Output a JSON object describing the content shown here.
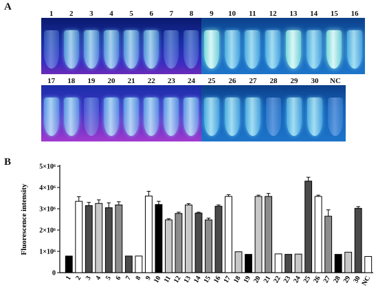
{
  "panel_labels": {
    "a": "A",
    "b": "B"
  },
  "photo_rows": [
    {
      "left_labels": [
        "1",
        "2",
        "3",
        "4",
        "5",
        "6",
        "7",
        "8"
      ],
      "right_labels": [
        "9",
        "10",
        "11",
        "12",
        "13",
        "14",
        "15",
        "16"
      ]
    },
    {
      "left_labels": [
        "17",
        "18",
        "19",
        "20",
        "21",
        "22",
        "23",
        "24"
      ],
      "right_labels": [
        "25",
        "26",
        "27",
        "28",
        "29",
        "30",
        "NC"
      ]
    }
  ],
  "colors": {
    "black": "#000000",
    "dark_gray": "#4a4a4a",
    "mid_gray": "#8c8c8c",
    "light_gray": "#c8c8c8",
    "white": "#ffffff"
  },
  "chart_data": {
    "type": "bar",
    "ylabel": "Fluorescence intensity",
    "xlabel": "",
    "ylim": [
      0,
      5000000
    ],
    "ytick_labels": [
      "0",
      "1×10⁶",
      "2×10⁶",
      "3×10⁶",
      "4×10⁶",
      "5×10⁶"
    ],
    "yticks": [
      0,
      1000000,
      2000000,
      3000000,
      4000000,
      5000000
    ],
    "categories": [
      "1",
      "2",
      "3",
      "4",
      "5",
      "6",
      "7",
      "8",
      "9",
      "10",
      "11",
      "12",
      "13",
      "14",
      "15",
      "16",
      "17",
      "18",
      "19",
      "20",
      "21",
      "22",
      "23",
      "24",
      "25",
      "26",
      "27",
      "28",
      "29",
      "30",
      "NC"
    ],
    "values": [
      780000,
      3350000,
      3150000,
      3250000,
      3050000,
      3180000,
      780000,
      780000,
      3600000,
      3200000,
      2480000,
      2780000,
      3180000,
      2800000,
      2480000,
      3120000,
      3580000,
      980000,
      860000,
      3580000,
      3580000,
      880000,
      860000,
      870000,
      4300000,
      3580000,
      2650000,
      860000,
      960000,
      3020000,
      760000
    ],
    "errors": [
      0,
      220000,
      150000,
      170000,
      230000,
      150000,
      0,
      0,
      220000,
      150000,
      50000,
      60000,
      60000,
      40000,
      80000,
      60000,
      80000,
      0,
      0,
      60000,
      140000,
      0,
      0,
      0,
      180000,
      60000,
      300000,
      0,
      0,
      80000,
      0
    ],
    "bar_colors": [
      "black",
      "white",
      "dark_gray",
      "light_gray",
      "dark_gray",
      "mid_gray",
      "dark_gray",
      "white",
      "white",
      "black",
      "light_gray",
      "mid_gray",
      "light_gray",
      "dark_gray",
      "mid_gray",
      "dark_gray",
      "white",
      "light_gray",
      "black",
      "light_gray",
      "mid_gray",
      "white",
      "dark_gray",
      "light_gray",
      "dark_gray",
      "white",
      "mid_gray",
      "black",
      "light_gray",
      "dark_gray",
      "white"
    ],
    "grid": false,
    "legend": "none"
  }
}
